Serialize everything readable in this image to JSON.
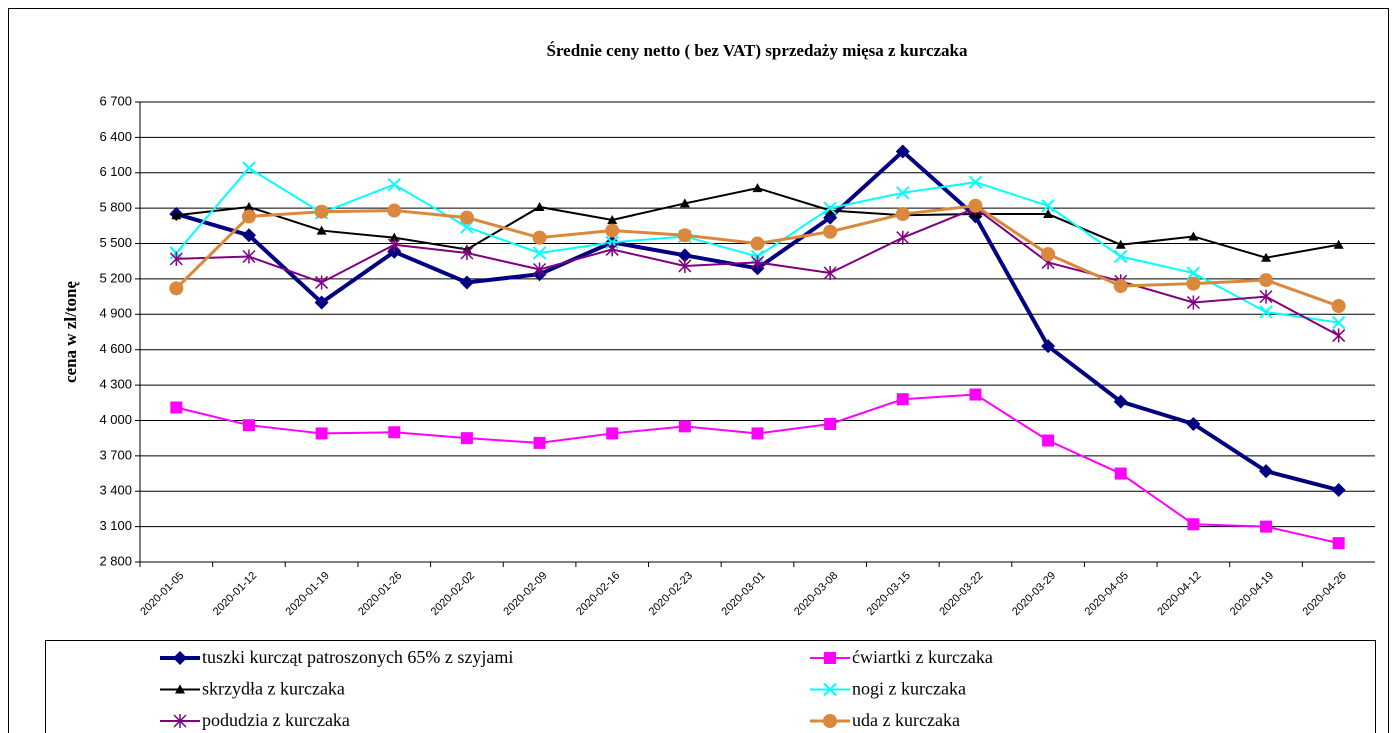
{
  "chart_data": {
    "type": "line",
    "title": "Średnie ceny netto ( bez VAT) sprzedaży mięsa z kurczaka",
    "y_label": "cena w zl/tonę",
    "categories": [
      "2020-01-05",
      "2020-01-12",
      "2020-01-19",
      "2020-01-26",
      "2020-02-02",
      "2020-02-09",
      "2020-02-16",
      "2020-02-23",
      "2020-03-01",
      "2020-03-08",
      "2020-03-15",
      "2020-03-22",
      "2020-03-29",
      "2020-04-05",
      "2020-04-12",
      "2020-04-19",
      "2020-04-26"
    ],
    "ylim": [
      2800,
      6700
    ],
    "yticks": [
      {
        "value": 2800,
        "label": "2 800"
      },
      {
        "value": 3100,
        "label": "3 100"
      },
      {
        "value": 3400,
        "label": "3 400"
      },
      {
        "value": 3700,
        "label": "3 700"
      },
      {
        "value": 4000,
        "label": "4 000"
      },
      {
        "value": 4300,
        "label": "4 300"
      },
      {
        "value": 4600,
        "label": "4 600"
      },
      {
        "value": 4900,
        "label": "4 900"
      },
      {
        "value": 5200,
        "label": "5 200"
      },
      {
        "value": 5500,
        "label": "5 500"
      },
      {
        "value": 5800,
        "label": "5 800"
      },
      {
        "value": 6100,
        "label": "6 100"
      },
      {
        "value": 6400,
        "label": "6 400"
      },
      {
        "value": 6700,
        "label": "6 700"
      }
    ],
    "grid": true,
    "legend": "bottom",
    "series": [
      {
        "name": "tuszki kurcząt patroszonych 65% z szyjami",
        "color": "#000080",
        "marker": "diamond",
        "width": 4,
        "values": [
          5750,
          5570,
          5000,
          5430,
          5170,
          5240,
          5510,
          5400,
          5290,
          5720,
          6280,
          5730,
          4630,
          4160,
          3970,
          3570,
          3410
        ]
      },
      {
        "name": "ćwiartki z kurczaka",
        "color": "#ff00ff",
        "marker": "square",
        "width": 2,
        "values": [
          4110,
          3960,
          3890,
          3900,
          3850,
          3810,
          3890,
          3950,
          3890,
          3970,
          4180,
          4220,
          3830,
          3550,
          3120,
          3100,
          2960
        ]
      },
      {
        "name": "skrzydła z kurczaka",
        "color": "#000000",
        "marker": "triangle",
        "width": 2,
        "values": [
          5740,
          5810,
          5610,
          5550,
          5450,
          5810,
          5700,
          5840,
          5970,
          5780,
          5740,
          5750,
          5750,
          5490,
          5560,
          5380,
          5490
        ]
      },
      {
        "name": "nogi z kurczaka",
        "color": "#00ffff",
        "marker": "x",
        "width": 2,
        "values": [
          5420,
          6140,
          5760,
          6000,
          5640,
          5420,
          5510,
          5560,
          5390,
          5800,
          5930,
          6020,
          5820,
          5390,
          5250,
          4920,
          4830
        ]
      },
      {
        "name": "podudzia z kurczaka",
        "color": "#800080",
        "marker": "star",
        "width": 2,
        "values": [
          5370,
          5390,
          5170,
          5490,
          5420,
          5280,
          5450,
          5310,
          5340,
          5250,
          5550,
          5800,
          5340,
          5180,
          5000,
          5050,
          4720
        ]
      },
      {
        "name": "uda z kurczaka",
        "color": "#d9883e",
        "marker": "circle",
        "width": 3,
        "values": [
          5120,
          5730,
          5770,
          5780,
          5720,
          5550,
          5610,
          5570,
          5500,
          5600,
          5750,
          5820,
          5410,
          5140,
          5160,
          5190,
          4970
        ]
      }
    ]
  }
}
